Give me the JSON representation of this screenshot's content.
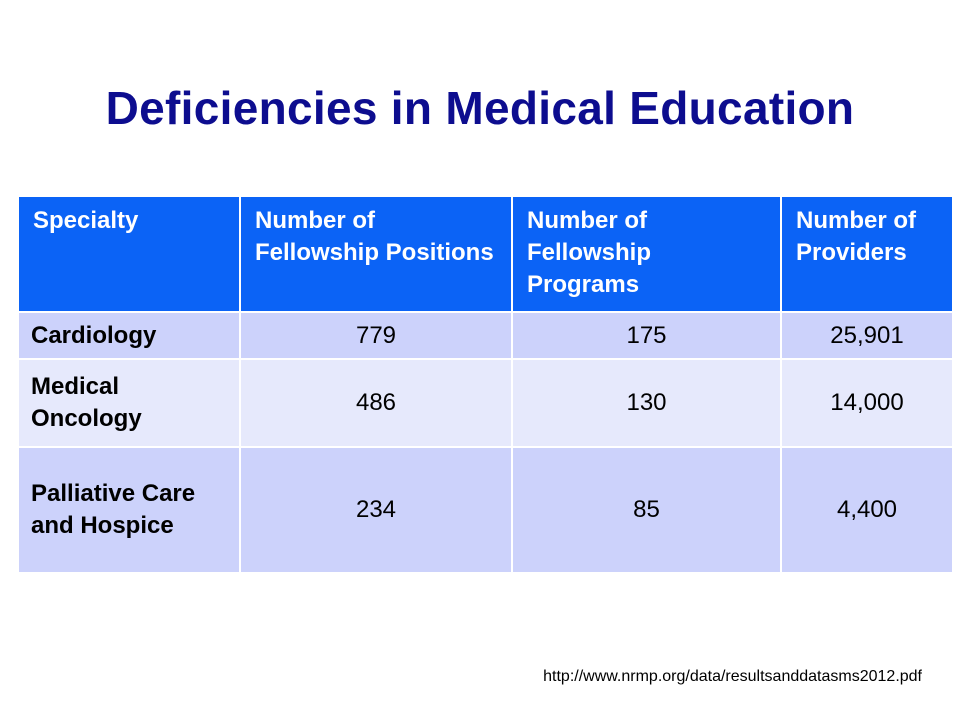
{
  "slide": {
    "title": "Deficiencies in Medical Education",
    "source_url": "http://www.nrmp.org/data/resultsanddatasms2012.pdf"
  },
  "table": {
    "headers": [
      "Specialty",
      "Number of Fellowship Positions",
      "Number of Fellowship Programs",
      "Number of Providers"
    ],
    "rows": [
      {
        "specialty": "Cardiology",
        "positions": "779",
        "programs": "175",
        "providers": "25,901"
      },
      {
        "specialty": "Medical Oncology",
        "positions": "486",
        "programs": "130",
        "providers": "14,000"
      },
      {
        "specialty": "Palliative Care and Hospice",
        "positions": "234",
        "programs": "85",
        "providers": "4,400"
      }
    ]
  },
  "colors": {
    "title": "#0d0d8f",
    "header_bg": "#0b63f6",
    "row_odd_bg": "#ccd2fb",
    "row_even_bg": "#e6e9fc"
  }
}
